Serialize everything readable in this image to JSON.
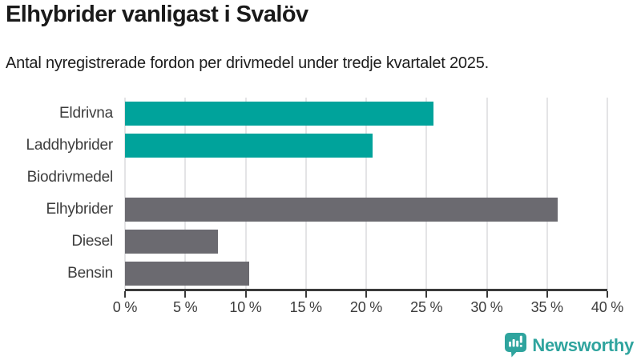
{
  "header": {
    "title": "Elhybrider vanligast i Svalöv",
    "subtitle": "Antal nyregistrerade fordon per drivmedel under tredje kvartalet 2025."
  },
  "chart_data": {
    "type": "bar",
    "orientation": "horizontal",
    "title": "Elhybrider vanligast i Svalöv",
    "subtitle": "Antal nyregistrerade fordon per drivmedel under tredje kvartalet 2025.",
    "categories": [
      "Eldrivna",
      "Laddhybrider",
      "Biodrivmedel",
      "Elhybrider",
      "Diesel",
      "Bensin"
    ],
    "values": [
      25.6,
      20.5,
      0,
      35.9,
      7.7,
      10.3
    ],
    "unit": "%",
    "xlabel": "",
    "ylabel": "",
    "xlim": [
      0,
      40
    ],
    "x_ticks": [
      0,
      5,
      10,
      15,
      20,
      25,
      30,
      35,
      40
    ],
    "x_tick_labels": [
      "0 %",
      "5 %",
      "10 %",
      "15 %",
      "20 %",
      "25 %",
      "30 %",
      "35 %",
      "40 %"
    ],
    "bar_colors": [
      "#00a39b",
      "#00a39b",
      "#00a39b",
      "#6b6a70",
      "#6b6a70",
      "#6b6a70"
    ],
    "grid": "vertical-gridlines-on",
    "legend": "none"
  },
  "colors": {
    "teal": "#00a39b",
    "gray": "#6b6a70",
    "axis": "#3a3a3a",
    "gridline": "#e4e4e6",
    "title_text": "#1a1a1a",
    "label_text": "#3d3d3d",
    "brand_teal": "#2fa49e"
  },
  "branding": {
    "logo_text": "Newsworthy",
    "logo_icon": "newsworthy-chart-bubble-icon"
  }
}
